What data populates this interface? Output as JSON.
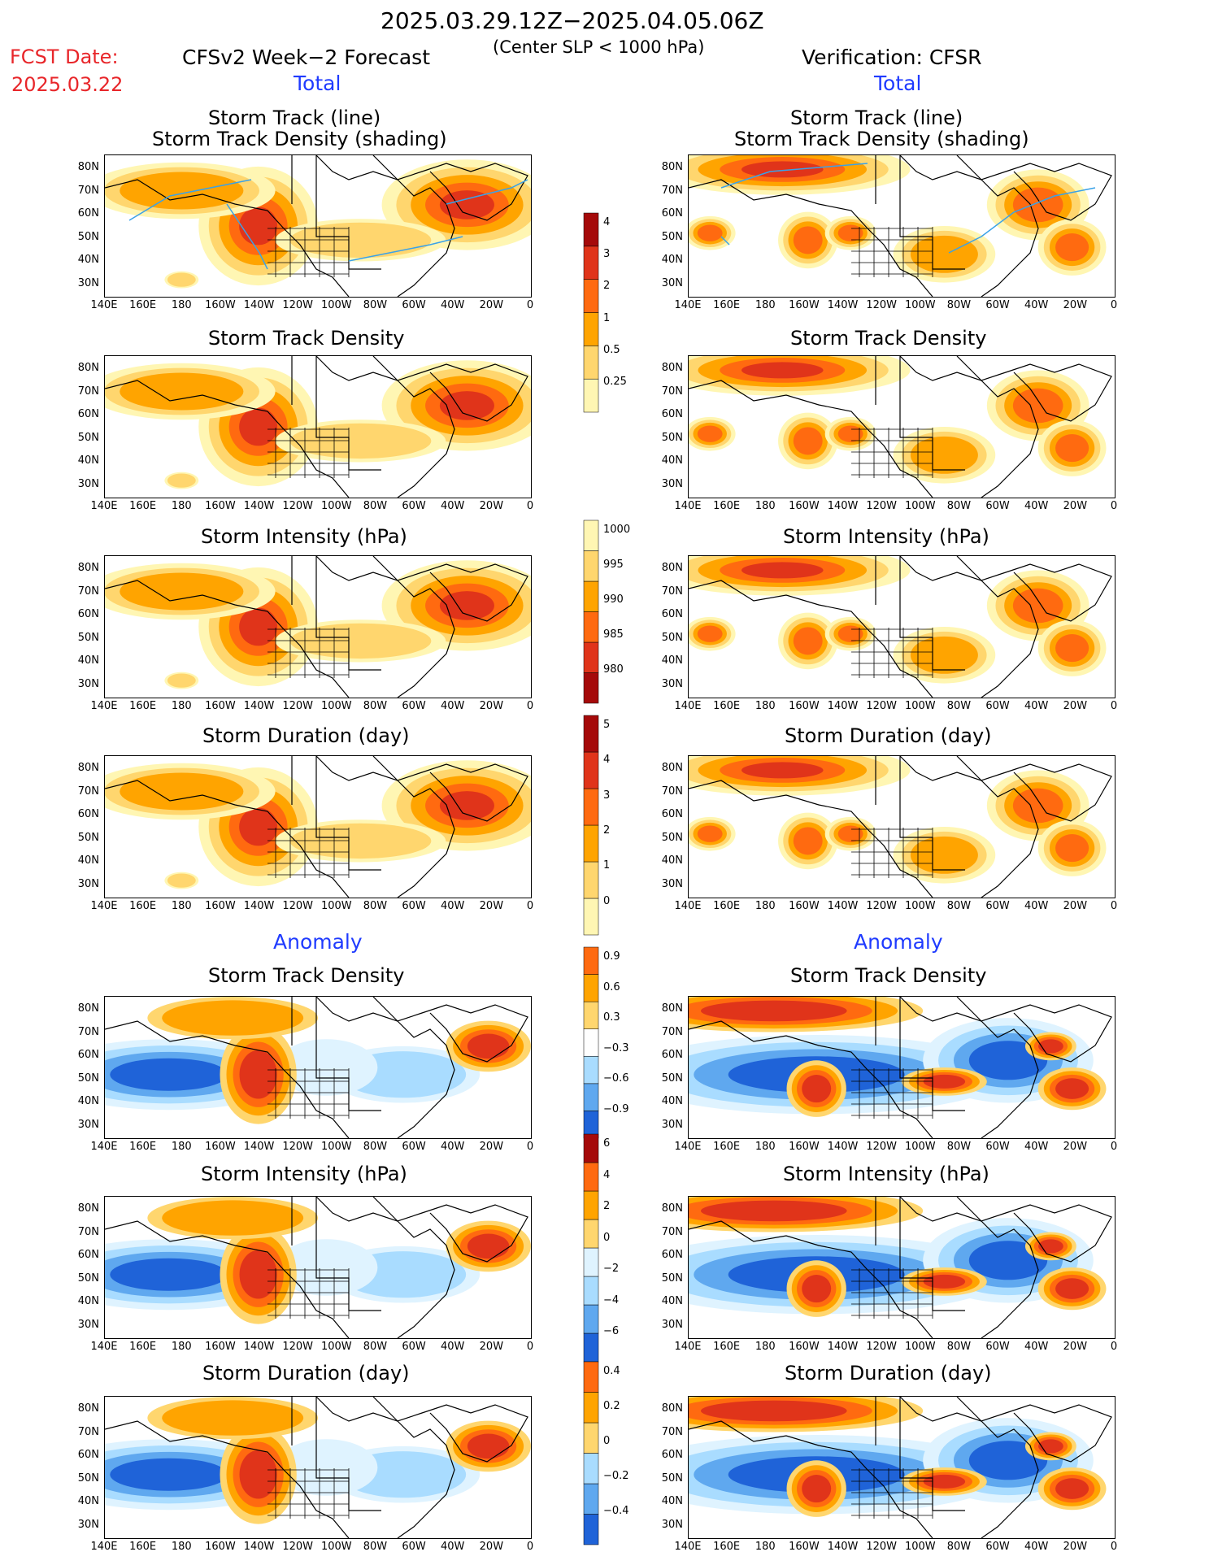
{
  "header": {
    "period": "2025.03.29.12Z−2025.04.05.06Z",
    "criterion": "(Center SLP < 1000 hPa)",
    "fcst_label": "FCST Date:",
    "fcst_date": "2025.03.22",
    "left_title": "CFSv2 Week−2 Forecast",
    "right_title": "Verification: CFSR",
    "total_label": "Total",
    "anomaly_label": "Anomaly"
  },
  "panel_titles": {
    "track_line": "Storm Track (line)",
    "track_shading": "Storm Track Density (shading)",
    "density": "Storm Track Density",
    "intensity": "Storm Intensity (hPa)",
    "duration": "Storm Duration (day)"
  },
  "lat_labels": [
    "80N",
    "70N",
    "60N",
    "50N",
    "40N",
    "30N"
  ],
  "lon_labels": [
    "140E",
    "160E",
    "180",
    "160W",
    "140W",
    "120W",
    "100W",
    "80W",
    "60W",
    "40W",
    "20W",
    "0"
  ],
  "colorbars": {
    "density_total": [
      "4",
      "3",
      "2",
      "1",
      "0.5",
      "0.25"
    ],
    "intensity_total": [
      "1000",
      "995",
      "990",
      "985",
      "980"
    ],
    "duration_total": [
      "5",
      "4",
      "3",
      "2",
      "1",
      "0"
    ],
    "density_anom": [
      "0.9",
      "0.6",
      "0.3",
      "−0.3",
      "−0.6",
      "−0.9"
    ],
    "intensity_anom": [
      "6",
      "4",
      "2",
      "0",
      "−2",
      "−4",
      "−6"
    ],
    "duration_anom": [
      "0.4",
      "0.2",
      "0",
      "−0.2",
      "−0.4"
    ]
  },
  "colors": {
    "warm": [
      "#fff6b3",
      "#ffd66e",
      "#ffa400",
      "#ff6a10",
      "#e0341a",
      "#a50a0a"
    ],
    "cool": [
      "#dff3ff",
      "#a9dcff",
      "#5fa8ef",
      "#1f63d8"
    ],
    "track_line": "#3aa2e8"
  }
}
